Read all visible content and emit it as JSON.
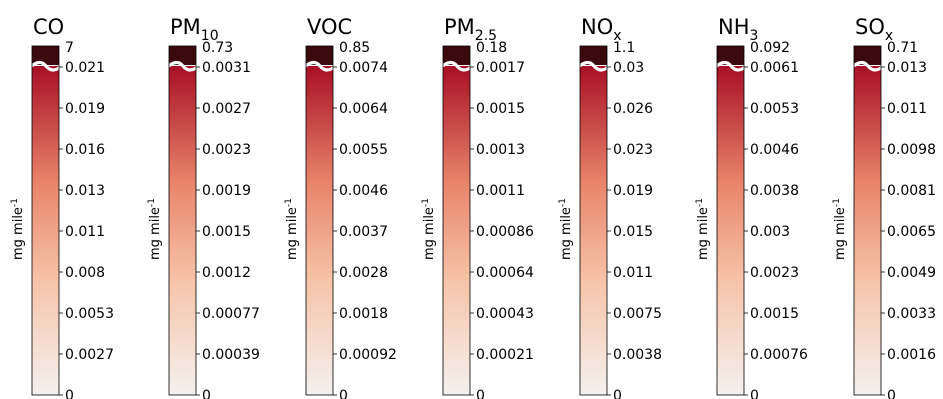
{
  "chart_data": [
    {
      "type": "heatmap",
      "title": "CO",
      "title_base": "CO",
      "title_sub": "",
      "ylabel": "mg mile",
      "ylabel_exp": "-1",
      "break_top": "7",
      "ticks": [
        "0",
        "0.0027",
        "0.0053",
        "0.008",
        "0.011",
        "0.013",
        "0.016",
        "0.019",
        "0.021"
      ]
    },
    {
      "type": "heatmap",
      "title": "PM10",
      "title_base": "PM",
      "title_sub": "10",
      "ylabel": "mg mile",
      "ylabel_exp": "-1",
      "break_top": "0.73",
      "ticks": [
        "0",
        "0.00039",
        "0.00077",
        "0.0012",
        "0.0015",
        "0.0019",
        "0.0023",
        "0.0027",
        "0.0031"
      ]
    },
    {
      "type": "heatmap",
      "title": "VOC",
      "title_base": "VOC",
      "title_sub": "",
      "ylabel": "mg mile",
      "ylabel_exp": "-1",
      "break_top": "0.85",
      "ticks": [
        "0",
        "0.00092",
        "0.0018",
        "0.0028",
        "0.0037",
        "0.0046",
        "0.0055",
        "0.0064",
        "0.0074"
      ]
    },
    {
      "type": "heatmap",
      "title": "PM2.5",
      "title_base": "PM",
      "title_sub": "2.5",
      "ylabel": "mg mile",
      "ylabel_exp": "-1",
      "break_top": "0.18",
      "ticks": [
        "0",
        "0.00021",
        "0.00043",
        "0.00064",
        "0.00086",
        "0.0011",
        "0.0013",
        "0.0015",
        "0.0017"
      ]
    },
    {
      "type": "heatmap",
      "title": "NOx",
      "title_base": "NO",
      "title_sub": "x",
      "ylabel": "mg mile",
      "ylabel_exp": "-1",
      "break_top": "1.1",
      "ticks": [
        "0",
        "0.0038",
        "0.0075",
        "0.011",
        "0.015",
        "0.019",
        "0.023",
        "0.026",
        "0.03"
      ]
    },
    {
      "type": "heatmap",
      "title": "NH3",
      "title_base": "NH",
      "title_sub": "3",
      "ylabel": "mg mile",
      "ylabel_exp": "-1",
      "break_top": "0.092",
      "ticks": [
        "0",
        "0.00076",
        "0.0015",
        "0.0023",
        "0.003",
        "0.0038",
        "0.0046",
        "0.0053",
        "0.0061"
      ]
    },
    {
      "type": "heatmap",
      "title": "SOx",
      "title_base": "SO",
      "title_sub": "x",
      "ylabel": "mg mile",
      "ylabel_exp": "-1",
      "break_top": "0.71",
      "ticks": [
        "0",
        "0.0016",
        "0.0033",
        "0.0049",
        "0.0065",
        "0.0081",
        "0.0098",
        "0.011",
        "0.013"
      ]
    }
  ],
  "colors": {
    "top_break": "#3b0a0f",
    "gradient_top": "#a80f25",
    "gradient_mid": "#e8836a",
    "gradient_low": "#f6c3a8",
    "gradient_bottom": "#f4f1ef"
  }
}
